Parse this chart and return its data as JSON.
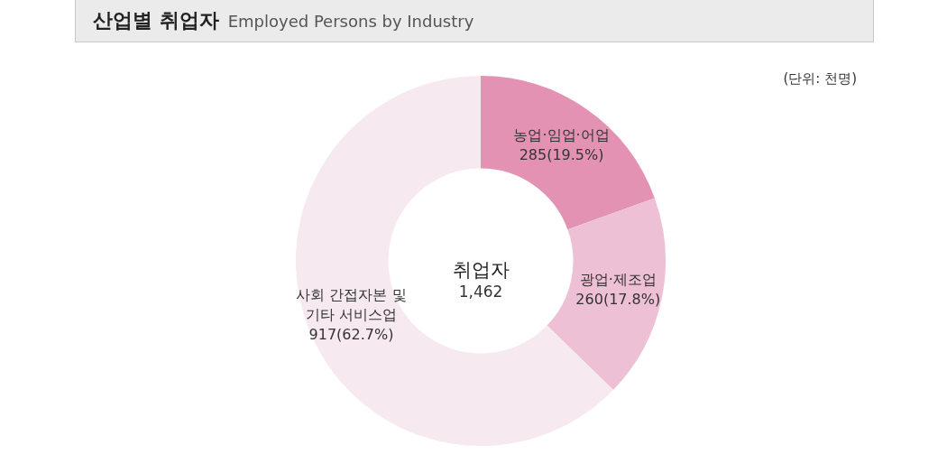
{
  "chart_data": {
    "type": "donut",
    "title": "산업별 취업자",
    "subtitle": "Employed Persons by Industry",
    "categories": [
      "농업·임업·어업",
      "광업·제조업",
      "사회 간접자본 및 기타 서비스업"
    ],
    "values": [
      285,
      260,
      917
    ],
    "colors": [
      "#e492b4",
      "#eec0d5",
      "#f6e9f0"
    ],
    "value_labels": [
      "285(19.5%)",
      "260(17.8%)",
      "917(62.7%)"
    ],
    "annotations": [
      "(단위: 천명)",
      "취업자",
      "1,462"
    ]
  }
}
